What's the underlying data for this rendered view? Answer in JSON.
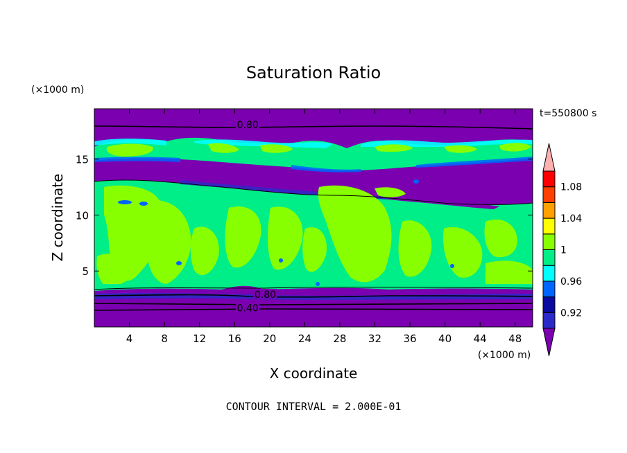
{
  "chart_data": {
    "type": "heatmap",
    "title": "Saturation Ratio",
    "xlabel": "X coordinate",
    "ylabel": "Z coordinate",
    "x_unit": "(×1000 m)",
    "y_unit": "(×1000 m)",
    "time_label": "t=550800 s",
    "footer": "CONTOUR INTERVAL = 2.000E-01",
    "xlim": [
      0,
      50
    ],
    "ylim": [
      0,
      19.5
    ],
    "x_ticks": [
      4,
      8,
      12,
      16,
      20,
      24,
      28,
      32,
      36,
      40,
      44,
      48
    ],
    "y_ticks": [
      5,
      10,
      15
    ],
    "contour_labels": [
      {
        "text": "0.80",
        "x": 17.5,
        "z": 18.0
      },
      {
        "text": "0.80",
        "x": 19.5,
        "z": 2.85
      },
      {
        "text": "0.40",
        "x": 17.5,
        "z": 1.65
      }
    ],
    "colorbar": {
      "levels": [
        0.92,
        0.94,
        0.96,
        0.98,
        1,
        1.02,
        1.04,
        1.06,
        1.08,
        1.1
      ],
      "tick_labels": [
        "0.92",
        "0.96",
        "1",
        "1.04",
        "1.08"
      ],
      "tick_values": [
        0.92,
        0.96,
        1,
        1.04,
        1.08
      ],
      "colors": [
        "#7a00b0",
        "#2a2ac8",
        "#0a0aa0",
        "#0064ff",
        "#00ffff",
        "#00ee88",
        "#88ff00",
        "#ffff00",
        "#ffa000",
        "#ff4000",
        "#ff0000",
        "#ffb0b0"
      ]
    },
    "field_colors": {
      "low": "#7a00b0",
      "band_dark": "#2a2ac8",
      "mid": "#00ee88",
      "high": "#88ff00",
      "cyan": "#00ffff",
      "blue": "#0064ff"
    }
  }
}
